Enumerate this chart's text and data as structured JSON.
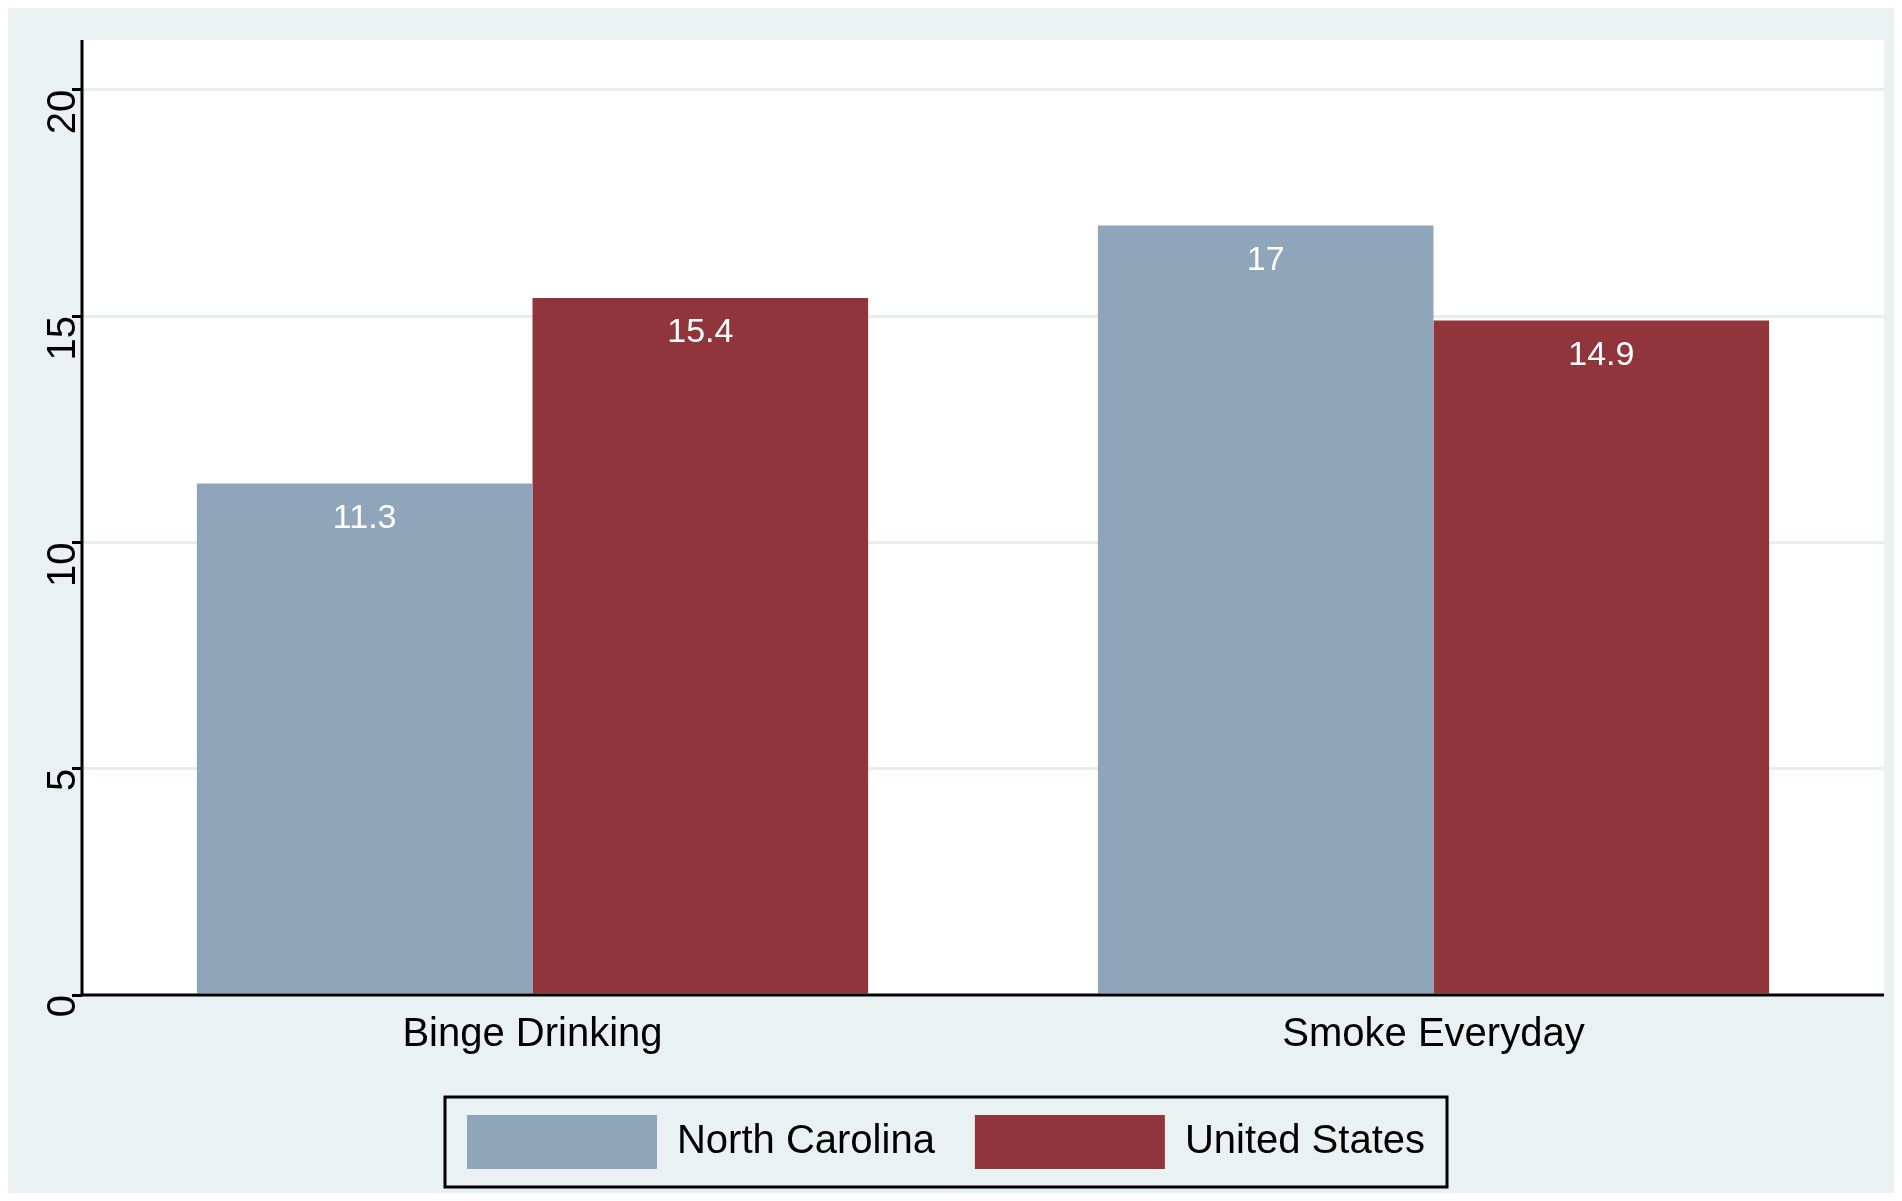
{
  "chart_data": {
    "type": "bar",
    "categories": [
      "Binge Drinking",
      "Smoke Everyday"
    ],
    "series": [
      {
        "name": "North Carolina",
        "color": "#8fa5b9",
        "values": [
          11.3,
          17
        ]
      },
      {
        "name": "United States",
        "color": "#90353b",
        "values": [
          15.4,
          14.9
        ]
      }
    ],
    "ylim": [
      0,
      21.1
    ],
    "yticks": [
      0,
      5,
      10,
      15,
      20
    ],
    "grid": "y",
    "legend": "bottom",
    "data_labels": true
  }
}
